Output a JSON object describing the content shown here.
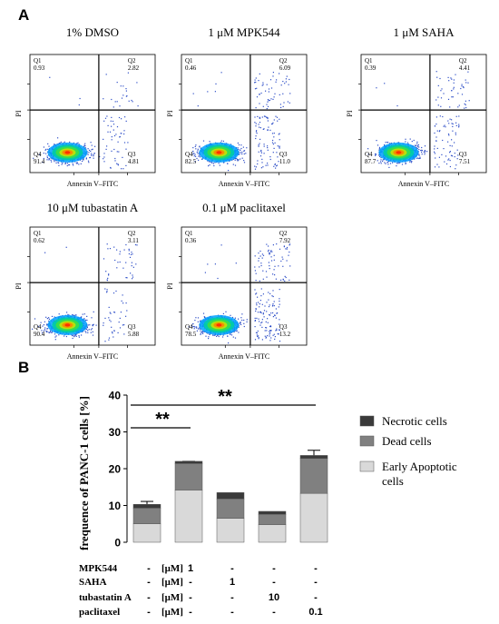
{
  "panel_labels": {
    "a": "A",
    "b": "B"
  },
  "flow": {
    "xlabel": "Annexin V–FITC",
    "ylabel": "PI",
    "quadrant_labels": [
      "Q1",
      "Q2",
      "Q3",
      "Q4"
    ],
    "panels": [
      {
        "title": "1% DMSO",
        "values": {
          "q1": "0.93",
          "q2": "2.82",
          "q3": "4.81",
          "q4": "91.4"
        }
      },
      {
        "title": "1 μM MPK544",
        "values": {
          "q1": "0.46",
          "q2": "6.09",
          "q3": "11.0",
          "q4": "82.5"
        }
      },
      {
        "title": "1 μM SAHA",
        "values": {
          "q1": "0.39",
          "q2": "4.41",
          "q3": "7.51",
          "q4": "87.7"
        }
      },
      {
        "title": "10 μM tubastatin A",
        "values": {
          "q1": "0.62",
          "q2": "3.11",
          "q3": "5.88",
          "q4": "90.4"
        }
      },
      {
        "title": "0.1 μM paclitaxel",
        "values": {
          "q1": "0.36",
          "q2": "7.92",
          "q3": "13.2",
          "q4": "78.5"
        }
      }
    ]
  },
  "chart_data": {
    "type": "bar",
    "stacked": true,
    "ylabel": "frequence of PANC-1 cells [%]",
    "ylim": [
      0,
      40
    ],
    "yticks": [
      "0",
      "10",
      "20",
      "30",
      "40"
    ],
    "categories": [
      "1% DMSO",
      "1 μM MPK544",
      "1 μM SAHA",
      "10 μM tubastatin A",
      "0.1 μM paclitaxel"
    ],
    "series": [
      {
        "name": "Early Apoptotic cells",
        "color": "#d9d9d9",
        "values": [
          5.0,
          14.2,
          6.5,
          4.8,
          13.3
        ],
        "errors": [
          1.0,
          2.5,
          0.8,
          0.7,
          1.0
        ]
      },
      {
        "name": "Dead cells",
        "color": "#808080",
        "values": [
          4.3,
          7.2,
          5.3,
          2.8,
          9.5
        ],
        "errors": [
          1.8,
          0.6,
          0.6,
          0.5,
          2.2
        ]
      },
      {
        "name": "Necrotic cells",
        "color": "#3a3a3a",
        "values": [
          1.0,
          0.6,
          1.7,
          0.8,
          0.8
        ],
        "errors": [
          0,
          0,
          0,
          0,
          0
        ]
      }
    ],
    "significance": [
      {
        "from": 0,
        "to": 1,
        "label": "**"
      },
      {
        "from": 0,
        "to": 4,
        "label": "**"
      }
    ],
    "legend_position": "right"
  },
  "treatment_table": {
    "rows": [
      {
        "name": "MPK544",
        "unit": "[μM]",
        "cells": [
          "-",
          "1",
          "-",
          "-",
          "-"
        ]
      },
      {
        "name": "SAHA",
        "unit": "[μM]",
        "cells": [
          "-",
          "-",
          "1",
          "-",
          "-"
        ]
      },
      {
        "name": "tubastatin A",
        "unit": "[μM]",
        "cells": [
          "-",
          "-",
          "-",
          "10",
          "-"
        ]
      },
      {
        "name": "paclitaxel",
        "unit": "[μM]",
        "cells": [
          "-",
          "-",
          "-",
          "-",
          "0.1"
        ]
      }
    ]
  }
}
